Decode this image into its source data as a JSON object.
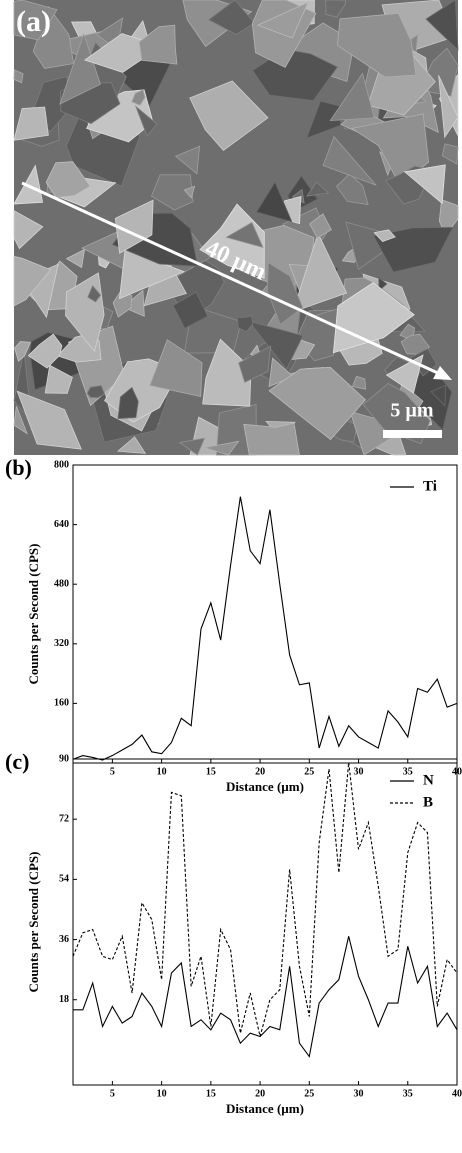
{
  "image": {
    "label": "(a)",
    "arrow_label": "40 µm",
    "scale_bar": "5 µm"
  },
  "chart_data": [
    {
      "type": "line",
      "panel_label": "(b)",
      "ylabel": "Counts per Second (CPS)",
      "xlabel": "Distance (µm)",
      "x": [
        1,
        2,
        3,
        4,
        5,
        6,
        7,
        8,
        9,
        10,
        11,
        12,
        13,
        14,
        15,
        16,
        17,
        18,
        19,
        20,
        21,
        22,
        23,
        24,
        25,
        26,
        27,
        28,
        29,
        30,
        31,
        32,
        33,
        34,
        35,
        36,
        37,
        38,
        39,
        40
      ],
      "xlim": [
        1,
        40
      ],
      "xticks": [
        5,
        10,
        15,
        20,
        25,
        30,
        35,
        40
      ],
      "ylim": [
        0,
        800
      ],
      "yticks": [
        160,
        320,
        480,
        640,
        800
      ],
      "legend": "upper right",
      "series": [
        {
          "name": "Ti",
          "color": "#000000",
          "dash": false,
          "values": [
            10,
            20,
            15,
            8,
            20,
            35,
            50,
            75,
            30,
            25,
            55,
            120,
            100,
            360,
            430,
            330,
            530,
            715,
            570,
            535,
            680,
            480,
            290,
            210,
            215,
            40,
            125,
            45,
            100,
            70,
            55,
            40,
            140,
            110,
            70,
            200,
            190,
            225,
            150,
            160
          ]
        }
      ]
    },
    {
      "type": "line",
      "panel_label": "(c)",
      "ylabel": "Counts per Second (CPS)",
      "xlabel": "Distance (µm)",
      "x": [
        1,
        2,
        3,
        4,
        5,
        6,
        7,
        8,
        9,
        10,
        11,
        12,
        13,
        14,
        15,
        16,
        17,
        18,
        19,
        20,
        21,
        22,
        23,
        24,
        25,
        26,
        27,
        28,
        29,
        30,
        31,
        32,
        33,
        34,
        35,
        36,
        37,
        38,
        39,
        40
      ],
      "xlim": [
        1,
        40
      ],
      "xticks": [
        5,
        10,
        15,
        20,
        25,
        30,
        35,
        40
      ],
      "ylim": [
        -7.5,
        90
      ],
      "yticks": [
        18,
        36,
        54,
        72,
        90
      ],
      "legend": "upper right",
      "series": [
        {
          "name": "N",
          "color": "#000000",
          "dash": false,
          "values": [
            15,
            15,
            23,
            10,
            16,
            11,
            13,
            20,
            16,
            10,
            26,
            29,
            10,
            12,
            9,
            14,
            12,
            5,
            8,
            7,
            10,
            9,
            28,
            5,
            1,
            17,
            21,
            24,
            37,
            25,
            18,
            10,
            17,
            17,
            34,
            23,
            28,
            10,
            14,
            9
          ]
        },
        {
          "name": "B",
          "color": "#000000",
          "dash": true,
          "values": [
            31,
            38,
            39,
            31,
            30,
            37,
            20,
            47,
            42,
            24,
            80,
            79,
            22,
            31,
            10,
            39,
            33,
            8,
            20,
            7,
            18,
            21,
            57,
            28,
            13,
            65,
            87,
            56,
            89,
            63,
            71,
            52,
            31,
            33,
            62,
            71,
            68,
            16,
            30,
            26
          ]
        }
      ]
    }
  ]
}
